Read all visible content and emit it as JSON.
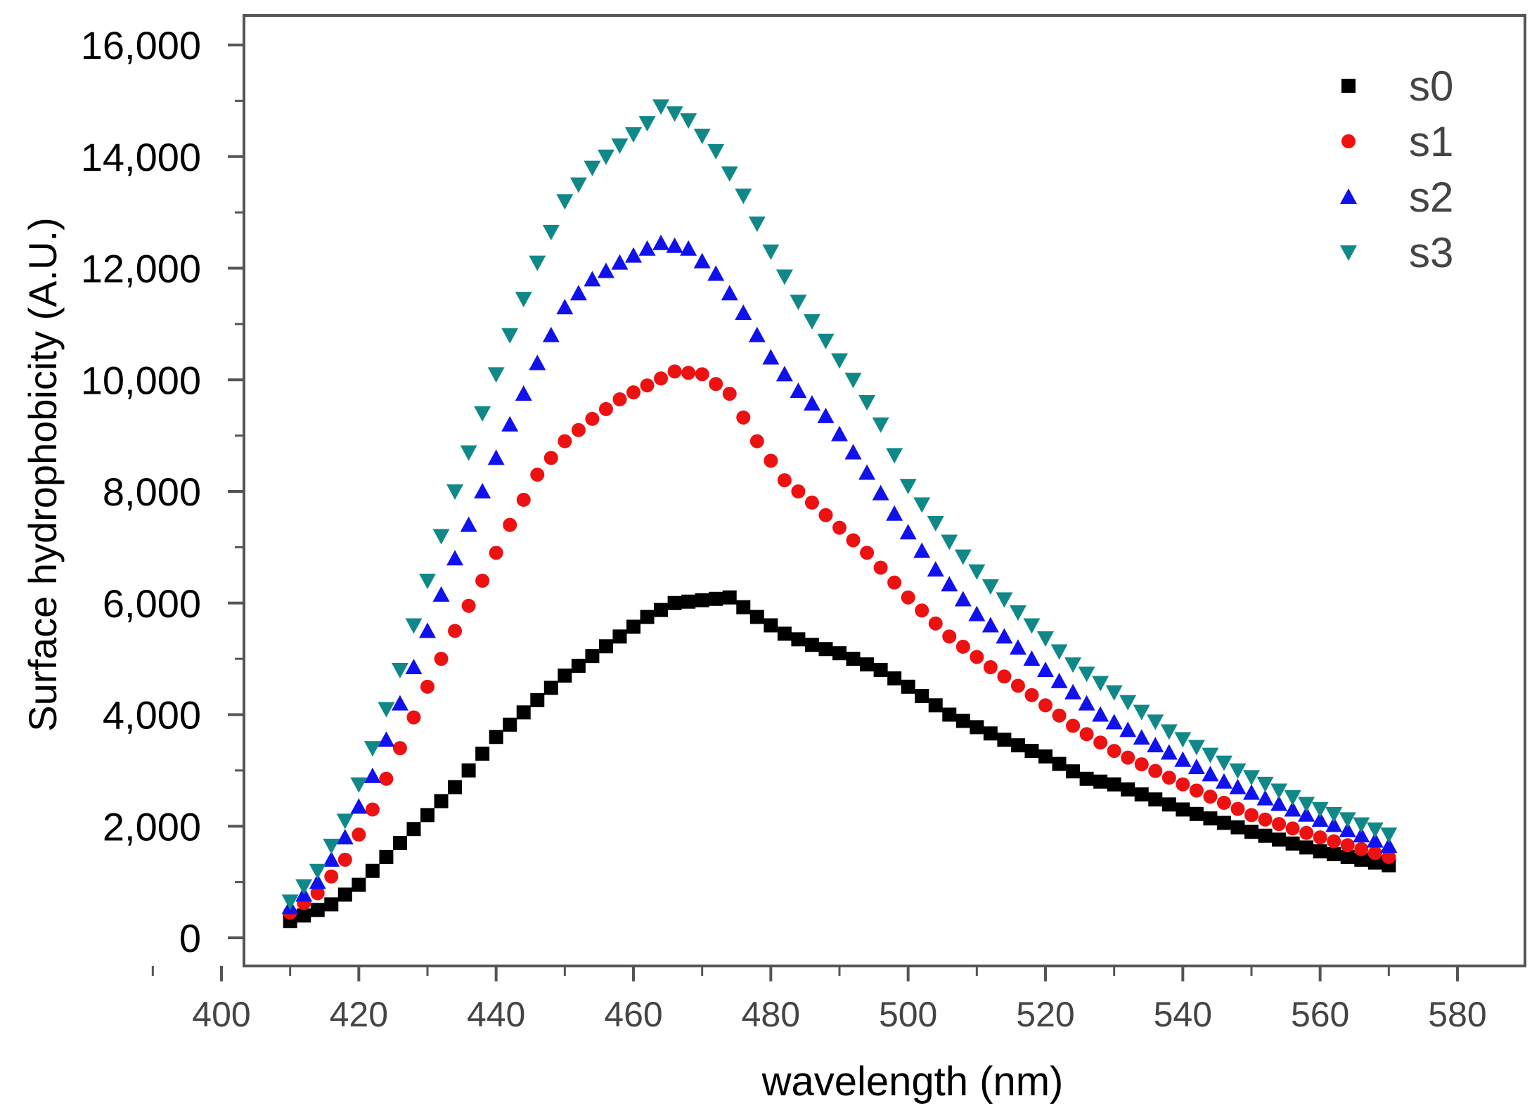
{
  "chart_data": {
    "type": "scatter",
    "title": "",
    "xlabel": "wavelength (nm)",
    "ylabel": "Surface hydrophobicity (A.U.)",
    "xlim": [
      390,
      582
    ],
    "ylim": [
      -400,
      16600
    ],
    "x_ticks": [
      400,
      420,
      440,
      460,
      480,
      500,
      520,
      540,
      560,
      580
    ],
    "y_ticks": [
      0,
      2000,
      4000,
      6000,
      8000,
      10000,
      12000,
      14000,
      16000
    ],
    "x_tick_labels": [
      "400",
      "420",
      "440",
      "460",
      "480",
      "500",
      "520",
      "540",
      "560",
      "580"
    ],
    "y_tick_labels": [
      "0",
      "2,000",
      "4,000",
      "6,000",
      "8,000",
      "10,000",
      "12,000",
      "14,000",
      "16,000"
    ],
    "legend_position": "top-right",
    "x_range": {
      "start": 410,
      "end": 570,
      "step": 2
    },
    "series": [
      {
        "name": "s0",
        "marker": "square",
        "color": "#000000",
        "anchors": [
          [
            410,
            300
          ],
          [
            416,
            600
          ],
          [
            420,
            950
          ],
          [
            426,
            1700
          ],
          [
            434,
            2700
          ],
          [
            440,
            3600
          ],
          [
            450,
            4700
          ],
          [
            458,
            5400
          ],
          [
            462,
            5750
          ],
          [
            466,
            6000
          ],
          [
            470,
            6050
          ],
          [
            474,
            6100
          ],
          [
            478,
            5750
          ],
          [
            482,
            5450
          ],
          [
            486,
            5250
          ],
          [
            490,
            5100
          ],
          [
            496,
            4800
          ],
          [
            500,
            4500
          ],
          [
            506,
            4000
          ],
          [
            514,
            3550
          ],
          [
            520,
            3250
          ],
          [
            526,
            2850
          ],
          [
            530,
            2750
          ],
          [
            540,
            2300
          ],
          [
            550,
            1900
          ],
          [
            560,
            1550
          ],
          [
            570,
            1300
          ]
        ]
      },
      {
        "name": "s1",
        "marker": "circle",
        "color": "#ee1111",
        "anchors": [
          [
            410,
            450
          ],
          [
            414,
            800
          ],
          [
            418,
            1400
          ],
          [
            422,
            2300
          ],
          [
            426,
            3400
          ],
          [
            430,
            4500
          ],
          [
            434,
            5500
          ],
          [
            438,
            6400
          ],
          [
            442,
            7400
          ],
          [
            446,
            8300
          ],
          [
            450,
            8900
          ],
          [
            454,
            9300
          ],
          [
            458,
            9650
          ],
          [
            462,
            9900
          ],
          [
            466,
            10150
          ],
          [
            470,
            10100
          ],
          [
            474,
            9750
          ],
          [
            478,
            8900
          ],
          [
            482,
            8200
          ],
          [
            486,
            7800
          ],
          [
            490,
            7350
          ],
          [
            494,
            6900
          ],
          [
            500,
            6100
          ],
          [
            506,
            5400
          ],
          [
            512,
            4850
          ],
          [
            518,
            4350
          ],
          [
            524,
            3800
          ],
          [
            530,
            3350
          ],
          [
            540,
            2750
          ],
          [
            550,
            2200
          ],
          [
            560,
            1800
          ],
          [
            570,
            1450
          ]
        ]
      },
      {
        "name": "s2",
        "marker": "triangle-up",
        "color": "#1111ee",
        "anchors": [
          [
            410,
            550
          ],
          [
            414,
            1000
          ],
          [
            418,
            1800
          ],
          [
            422,
            2900
          ],
          [
            426,
            4200
          ],
          [
            430,
            5500
          ],
          [
            434,
            6800
          ],
          [
            438,
            8000
          ],
          [
            442,
            9200
          ],
          [
            446,
            10300
          ],
          [
            450,
            11300
          ],
          [
            454,
            11800
          ],
          [
            458,
            12100
          ],
          [
            462,
            12350
          ],
          [
            464,
            12450
          ],
          [
            468,
            12350
          ],
          [
            472,
            11900
          ],
          [
            476,
            11200
          ],
          [
            480,
            10400
          ],
          [
            484,
            9800
          ],
          [
            488,
            9350
          ],
          [
            492,
            8700
          ],
          [
            498,
            7600
          ],
          [
            504,
            6600
          ],
          [
            510,
            5800
          ],
          [
            516,
            5200
          ],
          [
            522,
            4600
          ],
          [
            528,
            4000
          ],
          [
            536,
            3450
          ],
          [
            546,
            2800
          ],
          [
            556,
            2300
          ],
          [
            570,
            1650
          ]
        ]
      },
      {
        "name": "s3",
        "marker": "triangle-down",
        "color": "#118888",
        "anchors": [
          [
            410,
            650
          ],
          [
            414,
            1200
          ],
          [
            418,
            2100
          ],
          [
            422,
            3400
          ],
          [
            426,
            4800
          ],
          [
            430,
            6400
          ],
          [
            434,
            8000
          ],
          [
            438,
            9400
          ],
          [
            442,
            10800
          ],
          [
            446,
            12100
          ],
          [
            450,
            13200
          ],
          [
            454,
            13800
          ],
          [
            458,
            14200
          ],
          [
            462,
            14600
          ],
          [
            464,
            14900
          ],
          [
            468,
            14650
          ],
          [
            472,
            14100
          ],
          [
            476,
            13300
          ],
          [
            480,
            12300
          ],
          [
            484,
            11400
          ],
          [
            488,
            10700
          ],
          [
            492,
            10000
          ],
          [
            496,
            9200
          ],
          [
            500,
            8100
          ],
          [
            506,
            7100
          ],
          [
            512,
            6300
          ],
          [
            518,
            5600
          ],
          [
            524,
            4900
          ],
          [
            530,
            4400
          ],
          [
            538,
            3700
          ],
          [
            548,
            3000
          ],
          [
            558,
            2400
          ],
          [
            570,
            1850
          ]
        ]
      }
    ]
  }
}
